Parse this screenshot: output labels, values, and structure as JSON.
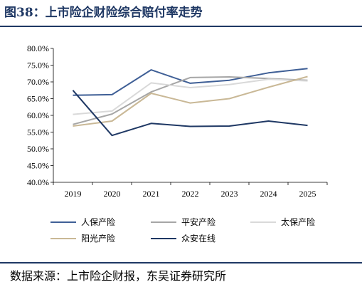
{
  "figure": {
    "title": "图38：上市险企财险综合赔付率走势",
    "source": "数据来源：上市险企财报，东吴证券研究所"
  },
  "chart_data": {
    "type": "line",
    "title": "图38：上市险企财险综合赔付率走势",
    "xlabel": "",
    "ylabel": "",
    "categories": [
      "2019",
      "2020",
      "2021",
      "2022",
      "2023",
      "2024",
      "2025"
    ],
    "y_ticks": [
      "40.0%",
      "45.0%",
      "50.0%",
      "55.0%",
      "60.0%",
      "65.0%",
      "70.0%",
      "75.0%",
      "80.0%"
    ],
    "ylim": [
      40,
      80
    ],
    "grid": false,
    "legend_position": "bottom",
    "series": [
      {
        "name": "人保产险",
        "color": "#3f5f96",
        "values": [
          66.0,
          66.2,
          73.6,
          69.6,
          70.5,
          72.7,
          74.0
        ]
      },
      {
        "name": "平安产险",
        "color": "#a6a6a6",
        "values": [
          57.3,
          60.4,
          67.0,
          71.3,
          71.5,
          71.0,
          70.5
        ]
      },
      {
        "name": "太保产险",
        "color": "#d9d9d9",
        "values": [
          60.3,
          61.3,
          69.7,
          68.3,
          69.2,
          70.8,
          70.3
        ]
      },
      {
        "name": "阳光产险",
        "color": "#c9b896",
        "values": [
          56.8,
          58.3,
          66.6,
          63.7,
          65.0,
          68.4,
          71.6
        ]
      },
      {
        "name": "众安在线",
        "color": "#1f3864",
        "values": [
          67.5,
          54.0,
          57.6,
          56.7,
          56.8,
          58.3,
          57.0
        ]
      }
    ]
  }
}
